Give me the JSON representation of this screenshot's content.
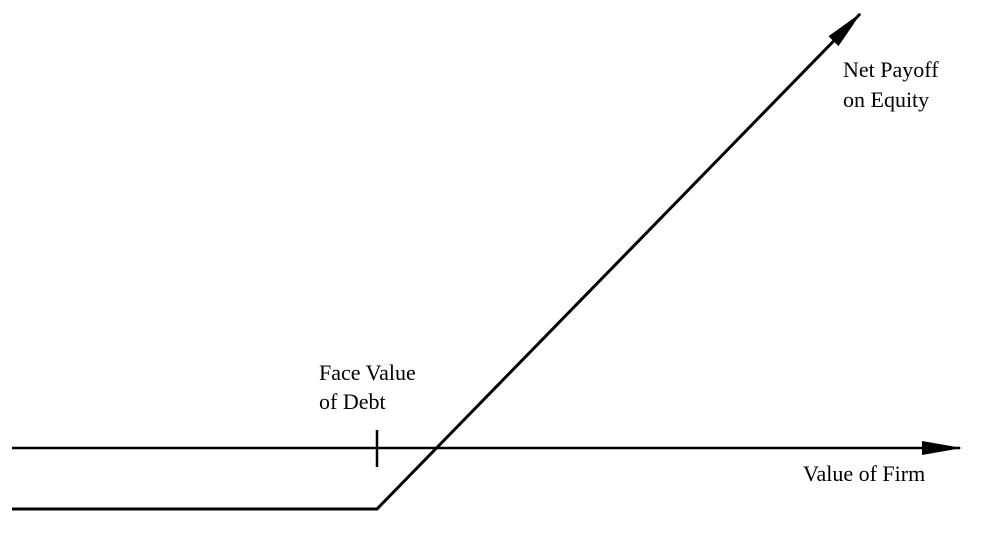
{
  "diagram": {
    "labels": {
      "payoff_line1": "Net Payoff",
      "payoff_line2": "on Equity",
      "face_value_line1": "Face Value",
      "face_value_line2": "of Debt",
      "x_axis": "Value of Firm"
    },
    "colors": {
      "stroke": "#000000",
      "background": "#ffffff"
    }
  }
}
